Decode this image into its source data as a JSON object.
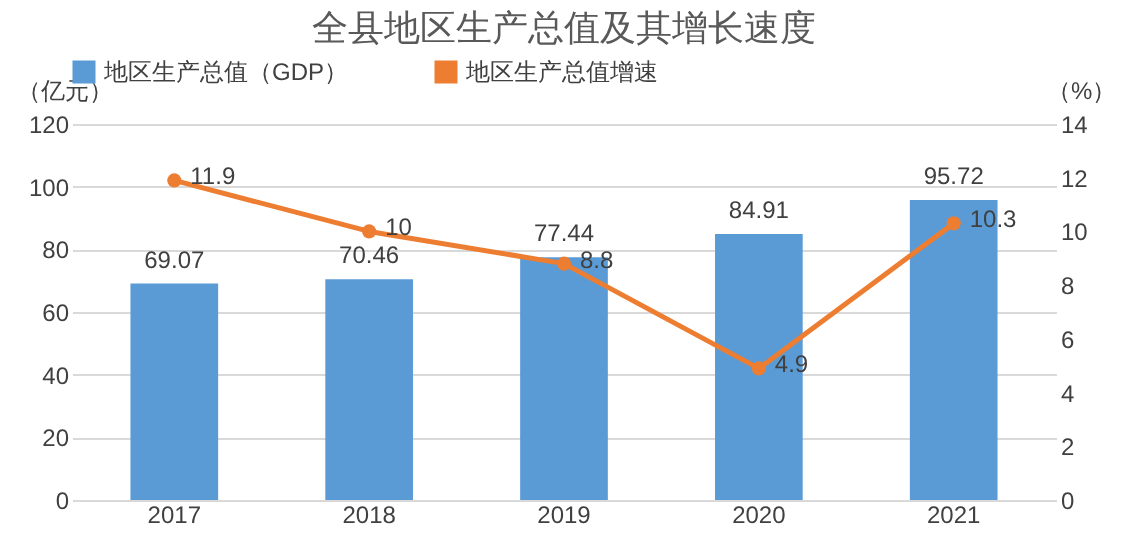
{
  "chart_data": {
    "type": "bar",
    "title": "全县地区生产总值及其增长速度",
    "ylabel": "（亿元）",
    "y2label": "（%）",
    "categories": [
      "2017",
      "2018",
      "2019",
      "2020",
      "2021"
    ],
    "series": [
      {
        "name": "地区生产总值（GDP）",
        "color": "#5b9bd5",
        "values": [
          69.07,
          70.46,
          77.44,
          84.91,
          95.72
        ]
      },
      {
        "name": "地区生产总值增速",
        "type": "line",
        "axis": "y2",
        "color": "#ed7d31",
        "marker": "circle",
        "values": [
          11.9,
          10,
          8.8,
          4.9,
          10.3
        ]
      }
    ],
    "ylim": [
      0,
      120
    ],
    "yticks": [
      0,
      20,
      40,
      60,
      80,
      100,
      120
    ],
    "y2lim": [
      0,
      14
    ],
    "y2ticks": [
      0,
      2,
      4,
      6,
      8,
      10,
      12,
      14
    ],
    "grid": "y",
    "legend": "top",
    "data_labels": true
  }
}
